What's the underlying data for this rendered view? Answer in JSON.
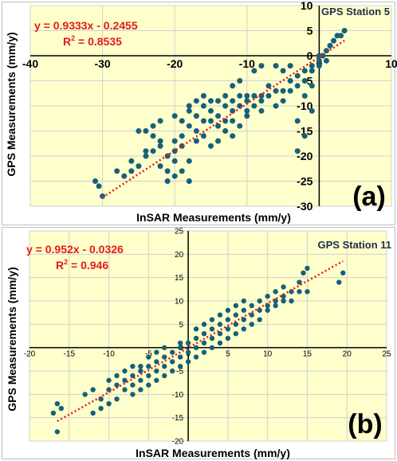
{
  "chart_data": [
    {
      "type": "scatter",
      "panel_label": "(a)",
      "station": "GPS Station 5",
      "equation": "y = 0.9333x - 0.2455",
      "r2_prefix": "R",
      "r2_sup": "2",
      "r2_value": " = 0.8535",
      "xlabel": "InSAR Measurements (mm/y)",
      "ylabel": "GPS Measurements (mm/y)",
      "xlim": [
        -40,
        10
      ],
      "ylim": [
        -30,
        10
      ],
      "xticks": [
        -40,
        -30,
        -20,
        -10,
        0,
        10
      ],
      "yticks": [
        -30,
        -25,
        -20,
        -15,
        -10,
        -5,
        0,
        5,
        10
      ],
      "grid": true,
      "trendline": {
        "slope": 0.9333,
        "intercept": -0.2455,
        "x_range": [
          -30,
          3.5
        ]
      },
      "points": [
        [
          -31,
          -25
        ],
        [
          -30,
          -28
        ],
        [
          -30.5,
          -26
        ],
        [
          -28,
          -23
        ],
        [
          -27,
          -24
        ],
        [
          -26,
          -21
        ],
        [
          -26,
          -23
        ],
        [
          -25,
          -22
        ],
        [
          -25,
          -15
        ],
        [
          -24,
          -19
        ],
        [
          -24,
          -15
        ],
        [
          -23,
          -14
        ],
        [
          -23,
          -16
        ],
        [
          -22,
          -13
        ],
        [
          -22,
          -17
        ],
        [
          -22,
          -22
        ],
        [
          -21,
          -20
        ],
        [
          -21,
          -23
        ],
        [
          -21,
          -25
        ],
        [
          -20,
          -21
        ],
        [
          -20,
          -24
        ],
        [
          -20,
          -12
        ],
        [
          -20,
          -19
        ],
        [
          -19,
          -13
        ],
        [
          -19,
          -18
        ],
        [
          -19,
          -23
        ],
        [
          -18,
          -11
        ],
        [
          -18,
          -14
        ],
        [
          -18,
          -21
        ],
        [
          -18,
          -25
        ],
        [
          -17,
          -12
        ],
        [
          -17,
          -15
        ],
        [
          -17,
          -17
        ],
        [
          -16,
          -10
        ],
        [
          -16,
          -13
        ],
        [
          -16,
          -16
        ],
        [
          -15,
          -11
        ],
        [
          -15,
          -13
        ],
        [
          -15,
          -18
        ],
        [
          -14,
          -9
        ],
        [
          -14,
          -12
        ],
        [
          -14,
          -14
        ],
        [
          -14,
          -17
        ],
        [
          -13,
          -8
        ],
        [
          -13,
          -10
        ],
        [
          -13,
          -13
        ],
        [
          -12,
          -9
        ],
        [
          -12,
          -11
        ],
        [
          -12,
          -16
        ],
        [
          -11,
          -8
        ],
        [
          -11,
          -10
        ],
        [
          -11,
          -14
        ],
        [
          -10,
          -8
        ],
        [
          -10,
          -9
        ],
        [
          -10,
          -12
        ],
        [
          -9,
          -8
        ],
        [
          -9,
          -10
        ],
        [
          -8,
          -8
        ],
        [
          -8,
          -9
        ],
        [
          -8,
          -11
        ],
        [
          -7,
          -6
        ],
        [
          -7,
          -8
        ],
        [
          -6,
          -7
        ],
        [
          -6,
          -10
        ],
        [
          -5,
          -7
        ],
        [
          -5,
          -9
        ],
        [
          -4,
          -7
        ],
        [
          -4,
          -5
        ],
        [
          -3,
          -4
        ],
        [
          -3,
          -6
        ],
        [
          -3,
          -13
        ],
        [
          -3,
          -19
        ],
        [
          -2,
          -3
        ],
        [
          -2,
          -5
        ],
        [
          -2,
          -8
        ],
        [
          -2,
          -16
        ],
        [
          -1,
          -2
        ],
        [
          -1,
          -3
        ],
        [
          -1,
          -6
        ],
        [
          -1,
          -11
        ],
        [
          0,
          -1
        ],
        [
          0,
          0
        ],
        [
          0,
          -2
        ],
        [
          0.5,
          0
        ],
        [
          1,
          1
        ],
        [
          1,
          -1
        ],
        [
          1.5,
          2
        ],
        [
          2,
          3
        ],
        [
          2.5,
          4
        ],
        [
          3,
          4
        ],
        [
          3.5,
          5
        ],
        [
          -8,
          -2
        ],
        [
          -9,
          -3
        ],
        [
          -11,
          -5
        ],
        [
          -12,
          -6
        ],
        [
          -6,
          -2
        ],
        [
          -5,
          -3
        ],
        [
          -4,
          -2
        ],
        [
          -15,
          -9
        ],
        [
          -16,
          -8
        ],
        [
          -17,
          -9
        ],
        [
          -18,
          -10
        ],
        [
          -19,
          -16
        ],
        [
          -20,
          -17
        ],
        [
          -22,
          -18
        ],
        [
          -23,
          -19
        ],
        [
          -24,
          -20
        ],
        [
          -13,
          -15
        ],
        [
          -12,
          -13
        ],
        [
          -10,
          -11
        ]
      ]
    },
    {
      "type": "scatter",
      "panel_label": "(b)",
      "station": "GPS Station 11",
      "equation": "y = 0.952x - 0.0326",
      "r2_prefix": "R",
      "r2_sup": "2",
      "r2_value": " = 0.946",
      "xlabel": "InSAR Measurements (mm/y)",
      "ylabel": "GPS Measurements (mm/y)",
      "xlim": [
        -20,
        25
      ],
      "ylim": [
        -20,
        25
      ],
      "xticks": [
        -20,
        -15,
        -10,
        -5,
        0,
        5,
        10,
        15,
        20,
        25
      ],
      "yticks": [
        -20,
        -15,
        -10,
        -5,
        0,
        5,
        10,
        15,
        20,
        25
      ],
      "grid": true,
      "trendline": {
        "slope": 0.952,
        "intercept": -0.0326,
        "x_range": [
          -16.5,
          19.5
        ]
      },
      "points": [
        [
          -17,
          -14
        ],
        [
          -16.5,
          -18
        ],
        [
          -16.5,
          -12
        ],
        [
          -16,
          -13
        ],
        [
          -12,
          -14
        ],
        [
          -11,
          -13
        ],
        [
          -11,
          -11
        ],
        [
          -10,
          -12
        ],
        [
          -10,
          -9
        ],
        [
          -9,
          -8
        ],
        [
          -9,
          -11
        ],
        [
          -8,
          -7
        ],
        [
          -8,
          -9
        ],
        [
          -7,
          -6
        ],
        [
          -7,
          -8
        ],
        [
          -7,
          -10
        ],
        [
          -6,
          -5
        ],
        [
          -6,
          -7
        ],
        [
          -6,
          -9
        ],
        [
          -5,
          -4
        ],
        [
          -5,
          -6
        ],
        [
          -5,
          -8
        ],
        [
          -4,
          -3
        ],
        [
          -4,
          -5
        ],
        [
          -4,
          -7
        ],
        [
          -3,
          -2
        ],
        [
          -3,
          -4
        ],
        [
          -3,
          -6
        ],
        [
          -2,
          -1
        ],
        [
          -2,
          -3
        ],
        [
          -2,
          -5
        ],
        [
          -1,
          0
        ],
        [
          -1,
          -2
        ],
        [
          -1,
          -4
        ],
        [
          0,
          1
        ],
        [
          0,
          -1
        ],
        [
          0,
          -3
        ],
        [
          1,
          2
        ],
        [
          1,
          0
        ],
        [
          1,
          -2
        ],
        [
          2,
          1
        ],
        [
          2,
          3
        ],
        [
          2,
          -1
        ],
        [
          3,
          2
        ],
        [
          3,
          4
        ],
        [
          3,
          0
        ],
        [
          4,
          3
        ],
        [
          4,
          5
        ],
        [
          4,
          1
        ],
        [
          5,
          4
        ],
        [
          5,
          6
        ],
        [
          5,
          2
        ],
        [
          6,
          5
        ],
        [
          6,
          7
        ],
        [
          6,
          3
        ],
        [
          7,
          6
        ],
        [
          7,
          8
        ],
        [
          7,
          4
        ],
        [
          8,
          7
        ],
        [
          8,
          9
        ],
        [
          9,
          8
        ],
        [
          9,
          10
        ],
        [
          10,
          9
        ],
        [
          10,
          11
        ],
        [
          11,
          10
        ],
        [
          11,
          12
        ],
        [
          12,
          11
        ],
        [
          12,
          13
        ],
        [
          13,
          12
        ],
        [
          14,
          14
        ],
        [
          15,
          17
        ],
        [
          15,
          12
        ],
        [
          14.5,
          16
        ],
        [
          19,
          14
        ],
        [
          19.5,
          16
        ],
        [
          -13,
          -10
        ],
        [
          -12,
          -9
        ],
        [
          -8,
          -5
        ],
        [
          -6,
          -4
        ],
        [
          -4,
          -1
        ],
        [
          -3,
          0
        ],
        [
          1,
          4
        ],
        [
          2,
          5
        ],
        [
          4,
          7
        ],
        [
          6,
          9
        ],
        [
          8,
          5
        ],
        [
          9,
          6
        ],
        [
          10,
          8
        ],
        [
          11,
          9
        ],
        [
          12,
          10
        ],
        [
          13,
          10
        ],
        [
          14,
          12
        ],
        [
          7,
          10
        ],
        [
          5,
          8
        ],
        [
          3,
          6
        ],
        [
          -1,
          1
        ],
        [
          -5,
          -2
        ],
        [
          -9,
          -6
        ],
        [
          -10,
          -7
        ],
        [
          -7,
          -4
        ]
      ]
    }
  ]
}
